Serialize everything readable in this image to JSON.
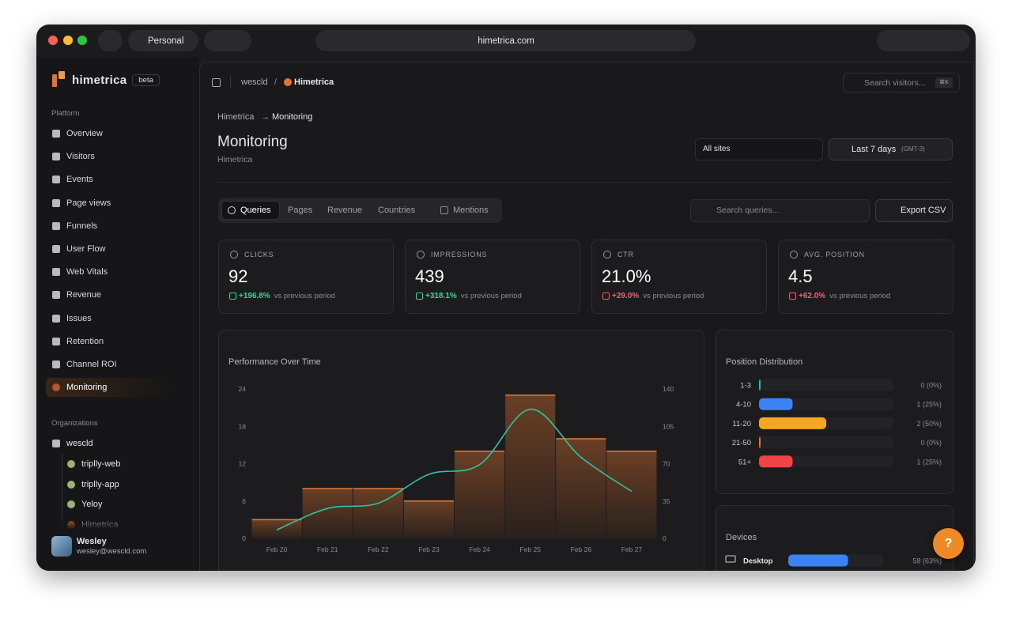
{
  "browser": {
    "profile": "Personal",
    "url": "himetrica.com"
  },
  "sidebar": {
    "brand": "himetrica",
    "badge": "beta",
    "platform_label": "Platform",
    "nav": [
      "Overview",
      "Visitors",
      "Events",
      "Page views",
      "Funnels",
      "User Flow",
      "Web Vitals",
      "Revenue",
      "Issues",
      "Retention",
      "Channel ROI",
      "Monitoring"
    ],
    "org_label": "Organizations",
    "org": "wescld",
    "sites": [
      "triplly-web",
      "triplly-app",
      "Yeloy",
      "Himetrica"
    ],
    "user": {
      "name": "Wesley",
      "email": "wesley@wescld.com"
    }
  },
  "topbar": {
    "workspace": "wescld",
    "separator": "/",
    "project": "Himetrica",
    "search": "Search visitors...",
    "shortcut": "⌘K"
  },
  "header": {
    "breadcrumb": [
      "Himetrica",
      "Monitoring"
    ],
    "breadcrumb_separator": "→",
    "title": "Monitoring",
    "subtitle": "Himetrica",
    "site_filter": "All sites",
    "date_range": "Last 7 days",
    "timezone": "(GMT-3)"
  },
  "tabs": [
    "Queries",
    "Pages",
    "Revenue",
    "Countries",
    "Mentions"
  ],
  "search_placeholder": "Search queries...",
  "export": "Export CSV",
  "help": "?",
  "stats": [
    {
      "label": "CLICKS",
      "value": "92",
      "change": "+196.8%",
      "note": "vs previous period",
      "color": "#34d399"
    },
    {
      "label": "IMPRESSIONS",
      "value": "439",
      "change": "+318.1%",
      "note": "vs previous period",
      "color": "#34d399"
    },
    {
      "label": "CTR",
      "value": "21.0%",
      "change": "+29.0%",
      "note": "vs previous period",
      "color": "#f0607a"
    },
    {
      "label": "AVG. POSITION",
      "value": "4.5",
      "change": "+62.0%",
      "note": "vs previous period",
      "color": "#f0607a"
    }
  ],
  "chart_data": {
    "type": "bar",
    "title": "Performance Over Time",
    "categories": [
      "Feb 20",
      "Feb 21",
      "Feb 22",
      "Feb 23",
      "Feb 24",
      "Feb 25",
      "Feb 26",
      "Feb 27"
    ],
    "series": [
      {
        "color": "#e07b39",
        "values": [
          3,
          8,
          8,
          6,
          14,
          23,
          16,
          14
        ]
      },
      {
        "type": "line",
        "axis": "y2",
        "color": "#2bc4a4",
        "values": [
          8,
          28,
          33,
          60,
          69,
          121,
          76,
          44
        ]
      }
    ],
    "ylim": [
      0,
      24
    ],
    "yticks": [
      0,
      6,
      12,
      18,
      24
    ],
    "y2lim": [
      0,
      140
    ],
    "y2ticks": [
      0,
      35,
      70,
      105,
      140
    ],
    "grid": false
  },
  "position_distribution": {
    "title": "Position Distribution",
    "categories": [
      "1-3",
      "4-10",
      "11-20",
      "21-50",
      "51+"
    ],
    "values": [
      0,
      1,
      2,
      0,
      1
    ],
    "value_labels": [
      "0 (0%)",
      "1 (25%)",
      "2 (50%)",
      "0 (0%)",
      "1 (25%)"
    ],
    "colors": [
      "#2bc4a4",
      "#3b82f6",
      "#f5a623",
      "#f97316",
      "#ef4444"
    ]
  },
  "devices": {
    "title": "Devices",
    "categories": [
      "Desktop"
    ],
    "values": [
      58
    ],
    "value_labels": [
      "58 (63%)"
    ],
    "colors": [
      "#3b82f6"
    ]
  }
}
